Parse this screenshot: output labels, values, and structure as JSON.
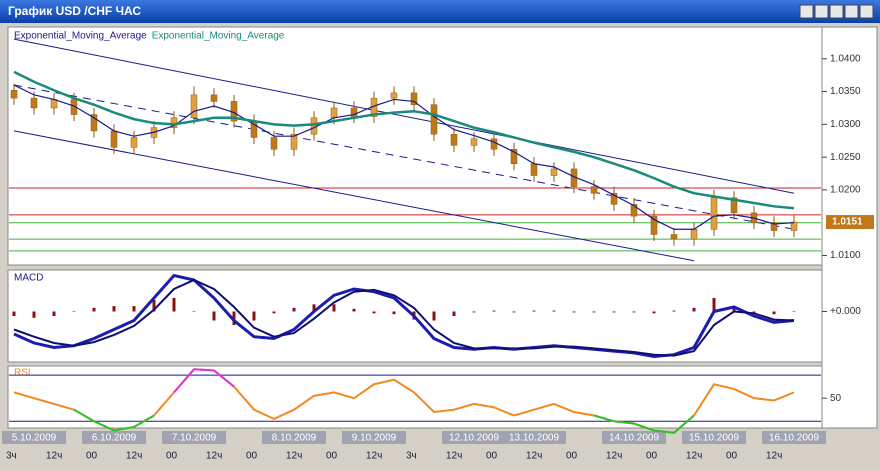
{
  "window": {
    "title": "График USD /CHF  ЧАС"
  },
  "chart_data": [
    {
      "type": "candlestick",
      "categories": [
        null,
        "5.10.2009",
        null,
        null,
        null,
        "6.10.2009",
        null,
        null,
        null,
        "7.10.2009",
        null,
        null,
        null,
        null,
        "8.10.2009",
        null,
        null,
        null,
        "9.10.2009",
        null,
        null,
        null,
        null,
        "12.10.2009",
        null,
        null,
        "13.10.2009",
        null,
        null,
        null,
        null,
        "14.10.2009",
        null,
        null,
        null,
        "15.10.2009",
        null,
        null,
        null,
        "16.10.2009"
      ],
      "hour_labels": [
        "3ч",
        "12ч",
        "00",
        "12ч",
        "00",
        "12ч",
        "00",
        "12ч",
        "00",
        "12ч",
        "3ч",
        "12ч",
        "00",
        "12ч",
        "00",
        "12ч",
        "00",
        "12ч",
        "00",
        "12ч"
      ],
      "open": [
        1.0352,
        1.034,
        1.0325,
        1.0338,
        1.0315,
        1.029,
        1.0265,
        1.028,
        1.0295,
        1.031,
        1.0345,
        1.0335,
        1.0305,
        1.028,
        1.0262,
        1.0285,
        1.031,
        1.0325,
        1.0312,
        1.034,
        1.0348,
        1.033,
        1.0285,
        1.0268,
        1.0278,
        1.0262,
        1.024,
        1.0222,
        1.0232,
        1.0205,
        1.0195,
        1.0178,
        1.016,
        1.0132,
        1.0125,
        1.014,
        1.0188,
        1.0165,
        1.015,
        1.0138
      ],
      "high": [
        1.0362,
        1.035,
        1.0348,
        1.0348,
        1.0325,
        1.03,
        1.029,
        1.0305,
        1.032,
        1.0358,
        1.0355,
        1.0345,
        1.0315,
        1.029,
        1.0295,
        1.032,
        1.0335,
        1.0335,
        1.035,
        1.0358,
        1.0358,
        1.034,
        1.0295,
        1.0288,
        1.0288,
        1.0272,
        1.025,
        1.0242,
        1.0242,
        1.0215,
        1.0205,
        1.0188,
        1.017,
        1.0142,
        1.015,
        1.02,
        1.0198,
        1.0175,
        1.016,
        1.0161
      ],
      "low": [
        1.033,
        1.0315,
        1.0315,
        1.0305,
        1.028,
        1.0255,
        1.0255,
        1.027,
        1.0285,
        1.03,
        1.0325,
        1.0295,
        1.027,
        1.0252,
        1.0252,
        1.0275,
        1.03,
        1.0302,
        1.0302,
        1.033,
        1.032,
        1.0275,
        1.0258,
        1.0258,
        1.0252,
        1.023,
        1.0212,
        1.0212,
        1.0195,
        1.0185,
        1.0168,
        1.015,
        1.0122,
        1.0115,
        1.0115,
        1.013,
        1.0155,
        1.014,
        1.0128,
        1.0128
      ],
      "close": [
        1.034,
        1.0325,
        1.0338,
        1.0315,
        1.029,
        1.0265,
        1.028,
        1.0295,
        1.031,
        1.0345,
        1.0335,
        1.0305,
        1.028,
        1.0262,
        1.0285,
        1.031,
        1.0325,
        1.0312,
        1.034,
        1.0348,
        1.033,
        1.0285,
        1.0268,
        1.0278,
        1.0262,
        1.024,
        1.0222,
        1.0232,
        1.0205,
        1.0195,
        1.0178,
        1.016,
        1.0132,
        1.0125,
        1.014,
        1.0188,
        1.0165,
        1.015,
        1.0138,
        1.0151
      ],
      "up_color": "#e0a040",
      "down_color": "#c07818",
      "wick_color": "#8a5a10",
      "series": [
        {
          "name": "Exponential_Moving_Average",
          "color": "#1a1a8c",
          "values": [
            1.036,
            1.0345,
            1.0338,
            1.0328,
            1.031,
            1.029,
            1.0282,
            1.0288,
            1.0298,
            1.032,
            1.0328,
            1.0318,
            1.03,
            1.0282,
            1.0282,
            1.0295,
            1.031,
            1.0315,
            1.0328,
            1.0338,
            1.0335,
            1.0312,
            1.0292,
            1.0283,
            1.0273,
            1.0258,
            1.024,
            1.0235,
            1.022,
            1.0208,
            1.0192,
            1.0176,
            1.0155,
            1.014,
            1.014,
            1.016,
            1.0162,
            1.0157,
            1.0148,
            1.015
          ]
        },
        {
          "name": "Exponential_Moving_Average",
          "color": "#1a8a7a",
          "values": [
            1.038,
            1.0365,
            1.0352,
            1.034,
            1.033,
            1.0318,
            1.0308,
            1.0302,
            1.03,
            1.0305,
            1.031,
            1.031,
            1.0305,
            1.03,
            1.0298,
            1.03,
            1.0305,
            1.031,
            1.0315,
            1.0318,
            1.032,
            1.0315,
            1.0305,
            1.0295,
            1.0288,
            1.028,
            1.0272,
            1.0265,
            1.0258,
            1.025,
            1.024,
            1.023,
            1.0218,
            1.0205,
            1.0195,
            1.019,
            1.0185,
            1.018,
            1.0175,
            1.0172
          ]
        }
      ],
      "channels": [
        {
          "x": [
            0,
            39
          ],
          "values": [
            1.043,
            1.0195
          ],
          "color": "#1a1a8c",
          "dashed": false
        },
        {
          "x": [
            0,
            39
          ],
          "values": [
            1.036,
            1.014
          ],
          "color": "#1a1a8c",
          "dashed": true
        },
        {
          "x": [
            0,
            34
          ],
          "values": [
            1.029,
            1.0092
          ],
          "color": "#1a1a8c",
          "dashed": false
        }
      ],
      "levels": [
        {
          "value": 1.0203,
          "color": "#d02020"
        },
        {
          "value": 1.0162,
          "color": "#d02020"
        },
        {
          "value": 1.015,
          "color": "#40b040"
        },
        {
          "value": 1.0125,
          "color": "#40b040"
        },
        {
          "value": 1.0107,
          "color": "#40b040"
        }
      ],
      "current": 1.0151,
      "current_color": "#c07818",
      "ylim": [
        1.0087,
        1.0447
      ],
      "yticks": [
        {
          "value": 1.04,
          "label": "1.0400"
        },
        {
          "value": 1.035,
          "label": "1.0350"
        },
        {
          "value": 1.03,
          "label": "1.0300"
        },
        {
          "value": 1.025,
          "label": "1.0250"
        },
        {
          "value": 1.02,
          "label": "1.0200"
        },
        {
          "value": 1.01,
          "label": "1.0100"
        }
      ]
    },
    {
      "type": "macd",
      "title": "MACD",
      "hist_color": "#8b1010",
      "histogram": [
        -0.0005,
        -0.0007,
        -0.0005,
        0,
        0.0004,
        0.0006,
        0.0006,
        0.0013,
        0.0015,
        0,
        -0.001,
        -0.0015,
        -0.001,
        -0.0002,
        0.0004,
        0.0008,
        0.0008,
        0.0003,
        -0.0002,
        -0.0003,
        -0.0009,
        -0.001,
        -0.0005,
        -0.0001,
        0.0001,
        -0.0001,
        0.0001,
        0.0001,
        -0.0001,
        -0.0001,
        -0.0001,
        -0.0001,
        -0.0002,
        0.0001,
        0.0004,
        0.0015,
        0.0005,
        -0.0003,
        -0.0003,
        0
      ],
      "series": [
        {
          "color": "#1c1cb0",
          "values": [
            -0.0025,
            -0.0035,
            -0.004,
            -0.0038,
            -0.003,
            -0.002,
            -0.001,
            0.0015,
            0.004,
            0.0035,
            0.0015,
            -0.001,
            -0.0028,
            -0.003,
            -0.002,
            0.0,
            0.0018,
            0.0025,
            0.0022,
            0.0015,
            -0.0005,
            -0.003,
            -0.004,
            -0.0042,
            -0.004,
            -0.0042,
            -0.004,
            -0.0038,
            -0.004,
            -0.0042,
            -0.0044,
            -0.0046,
            -0.005,
            -0.0048,
            -0.004,
            0.0,
            0.0005,
            -0.0005,
            -0.0012,
            -0.001
          ]
        },
        {
          "color": "#101070",
          "values": [
            -0.002,
            -0.0028,
            -0.0035,
            -0.0038,
            -0.0034,
            -0.0026,
            -0.0016,
            0.0002,
            0.0025,
            0.0035,
            0.0025,
            0.0005,
            -0.0018,
            -0.0028,
            -0.0024,
            -0.0008,
            0.001,
            0.0022,
            0.0024,
            0.0018,
            0.0004,
            -0.002,
            -0.0035,
            -0.0041,
            -0.0041,
            -0.0041,
            -0.0041,
            -0.0039,
            -0.0039,
            -0.0041,
            -0.0043,
            -0.0045,
            -0.0048,
            -0.0049,
            -0.0044,
            -0.0015,
            0.0,
            -0.0002,
            -0.0009,
            -0.001
          ]
        }
      ],
      "ylim": [
        -0.0055,
        0.0045
      ],
      "yticks": [
        {
          "value": 0,
          "label": "+0.000"
        }
      ]
    },
    {
      "type": "rsi",
      "title": "RSI",
      "color": "#f08a20",
      "low_color": "#30c030",
      "high_color": "#e030e0",
      "values": [
        55,
        50,
        45,
        40,
        30,
        22,
        25,
        35,
        55,
        75,
        74,
        60,
        40,
        32,
        40,
        52,
        55,
        50,
        62,
        66,
        55,
        38,
        40,
        45,
        42,
        35,
        40,
        45,
        38,
        35,
        30,
        28,
        22,
        20,
        35,
        62,
        58,
        50,
        48,
        55
      ],
      "levels": [
        30,
        70
      ],
      "level_color": "#1a1a8c",
      "ylim": [
        25,
        77
      ],
      "yticks": [
        50
      ]
    }
  ]
}
